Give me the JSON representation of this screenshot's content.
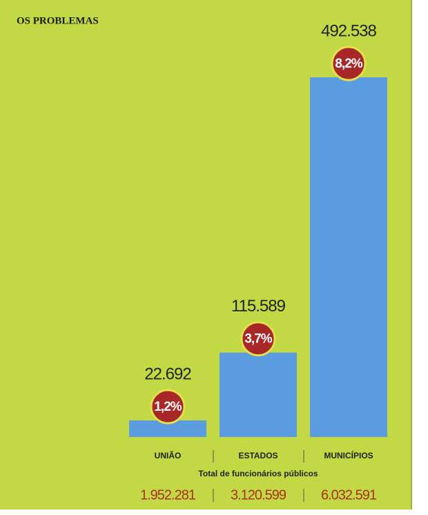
{
  "chart_data": {
    "type": "bar",
    "title": "OS PROBLEMAS",
    "categories": [
      "UNIÃO",
      "ESTADOS",
      "MUNICÍPIOS"
    ],
    "values": [
      22692,
      115589,
      492538
    ],
    "value_labels": [
      "22.692",
      "115.589",
      "492.538"
    ],
    "color": "#5b9be0",
    "shares": {
      "values": [
        1.2,
        3.7,
        8.2
      ],
      "value_labels": [
        "1,2%",
        "3,7%",
        "8,2%"
      ],
      "color": "#a8282a"
    },
    "totals": {
      "label": "Total de funcionários públicos",
      "values": [
        1952281,
        3120599,
        6032591
      ],
      "value_labels": [
        "1.952.281",
        "3.120.599",
        "6.032.591"
      ],
      "color": "#a8321e"
    }
  }
}
